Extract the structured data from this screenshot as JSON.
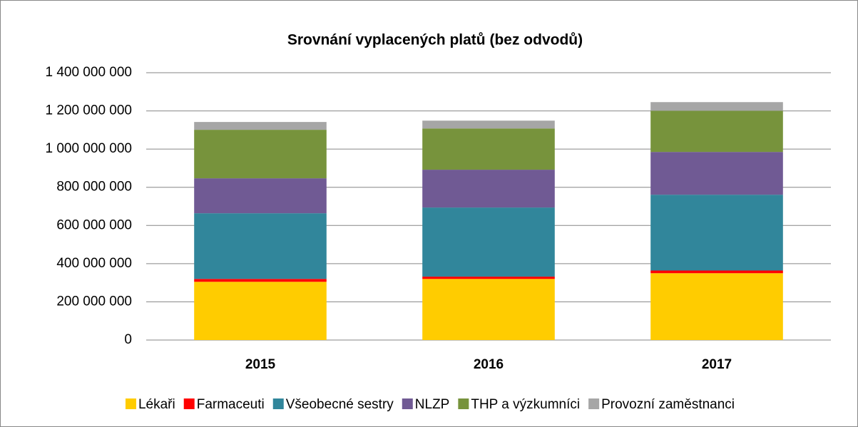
{
  "chart_data": {
    "type": "stacked_bar",
    "title": "Srovnání vyplacených platů (bez odvodů)",
    "categories": [
      "2015",
      "2016",
      "2017"
    ],
    "series": [
      {
        "name": "Lékaři",
        "color": "#ffcc00",
        "values": [
          305000000,
          320000000,
          350000000
        ]
      },
      {
        "name": "Farmaceuti",
        "color": "#ff0000",
        "values": [
          15000000,
          12000000,
          14000000
        ]
      },
      {
        "name": "Všeobecné sestry",
        "color": "#31869b",
        "values": [
          344000000,
          362000000,
          397000000
        ]
      },
      {
        "name": "NLZP",
        "color": "#705a94",
        "values": [
          183000000,
          198000000,
          224000000
        ]
      },
      {
        "name": "THP a výzkumníci",
        "color": "#77933c",
        "values": [
          254000000,
          216000000,
          216000000
        ]
      },
      {
        "name": "Provozní zaměstnanci",
        "color": "#a6a6a6",
        "values": [
          41000000,
          41000000,
          45000000
        ]
      }
    ],
    "ylim": [
      0,
      1400000000
    ],
    "yticks": [
      0,
      {
        "value": 200000000,
        "label": "200 000 000"
      },
      {
        "value": 400000000,
        "label": "400 000 000"
      },
      {
        "value": 600000000,
        "label": "600 000 000"
      },
      {
        "value": 800000000,
        "label": "800 000 000"
      },
      {
        "value": 1000000000,
        "label": "1 000 000 000"
      },
      {
        "value": 1200000000,
        "label": "1 200 000 000"
      },
      {
        "value": 1400000000,
        "label": "1 400 000 000"
      }
    ],
    "grid": true,
    "legend": "bottom"
  }
}
